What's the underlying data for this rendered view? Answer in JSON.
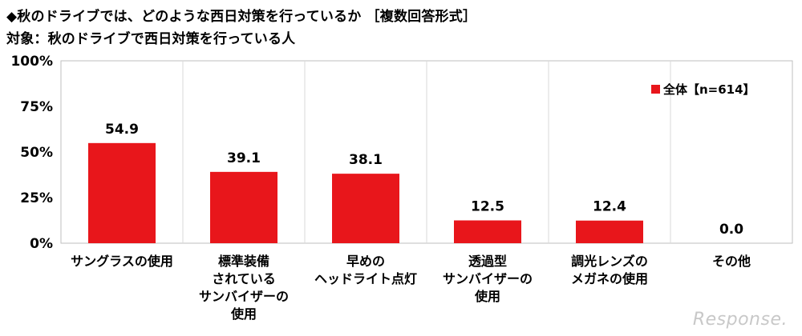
{
  "titles": {
    "line1": "◆秋のドライブでは、どのような西日対策を行っているか ［複数回答形式］",
    "line2": "対象：秋のドライブで西日対策を行っている人"
  },
  "watermark": "Response.",
  "colors": {
    "bar": "#e8161b",
    "grid": "#d9d9d9",
    "axis": "#bfbfbf"
  },
  "chart_data": {
    "type": "bar",
    "categories": [
      [
        "サングラスの使用"
      ],
      [
        "標準装備",
        "されている",
        "サンバイザーの",
        "使用"
      ],
      [
        "早めの",
        "ヘッドライト点灯"
      ],
      [
        "透過型",
        "サンバイザーの",
        "使用"
      ],
      [
        "調光レンズの",
        "メガネの使用"
      ],
      [
        "その他"
      ]
    ],
    "series": [
      {
        "name": "全体【n=614】",
        "values": [
          54.9,
          39.1,
          38.1,
          12.5,
          12.4,
          0.0
        ]
      }
    ],
    "data_labels": [
      "54.9",
      "39.1",
      "38.1",
      "12.5",
      "12.4",
      "0.0"
    ],
    "ylim": [
      0,
      100
    ],
    "yticks": [
      0,
      25,
      50,
      75,
      100
    ],
    "ytick_labels": [
      "0%",
      "25%",
      "50%",
      "75%",
      "100%"
    ],
    "legend_position": "top-right",
    "grid": "vertical-separators"
  }
}
